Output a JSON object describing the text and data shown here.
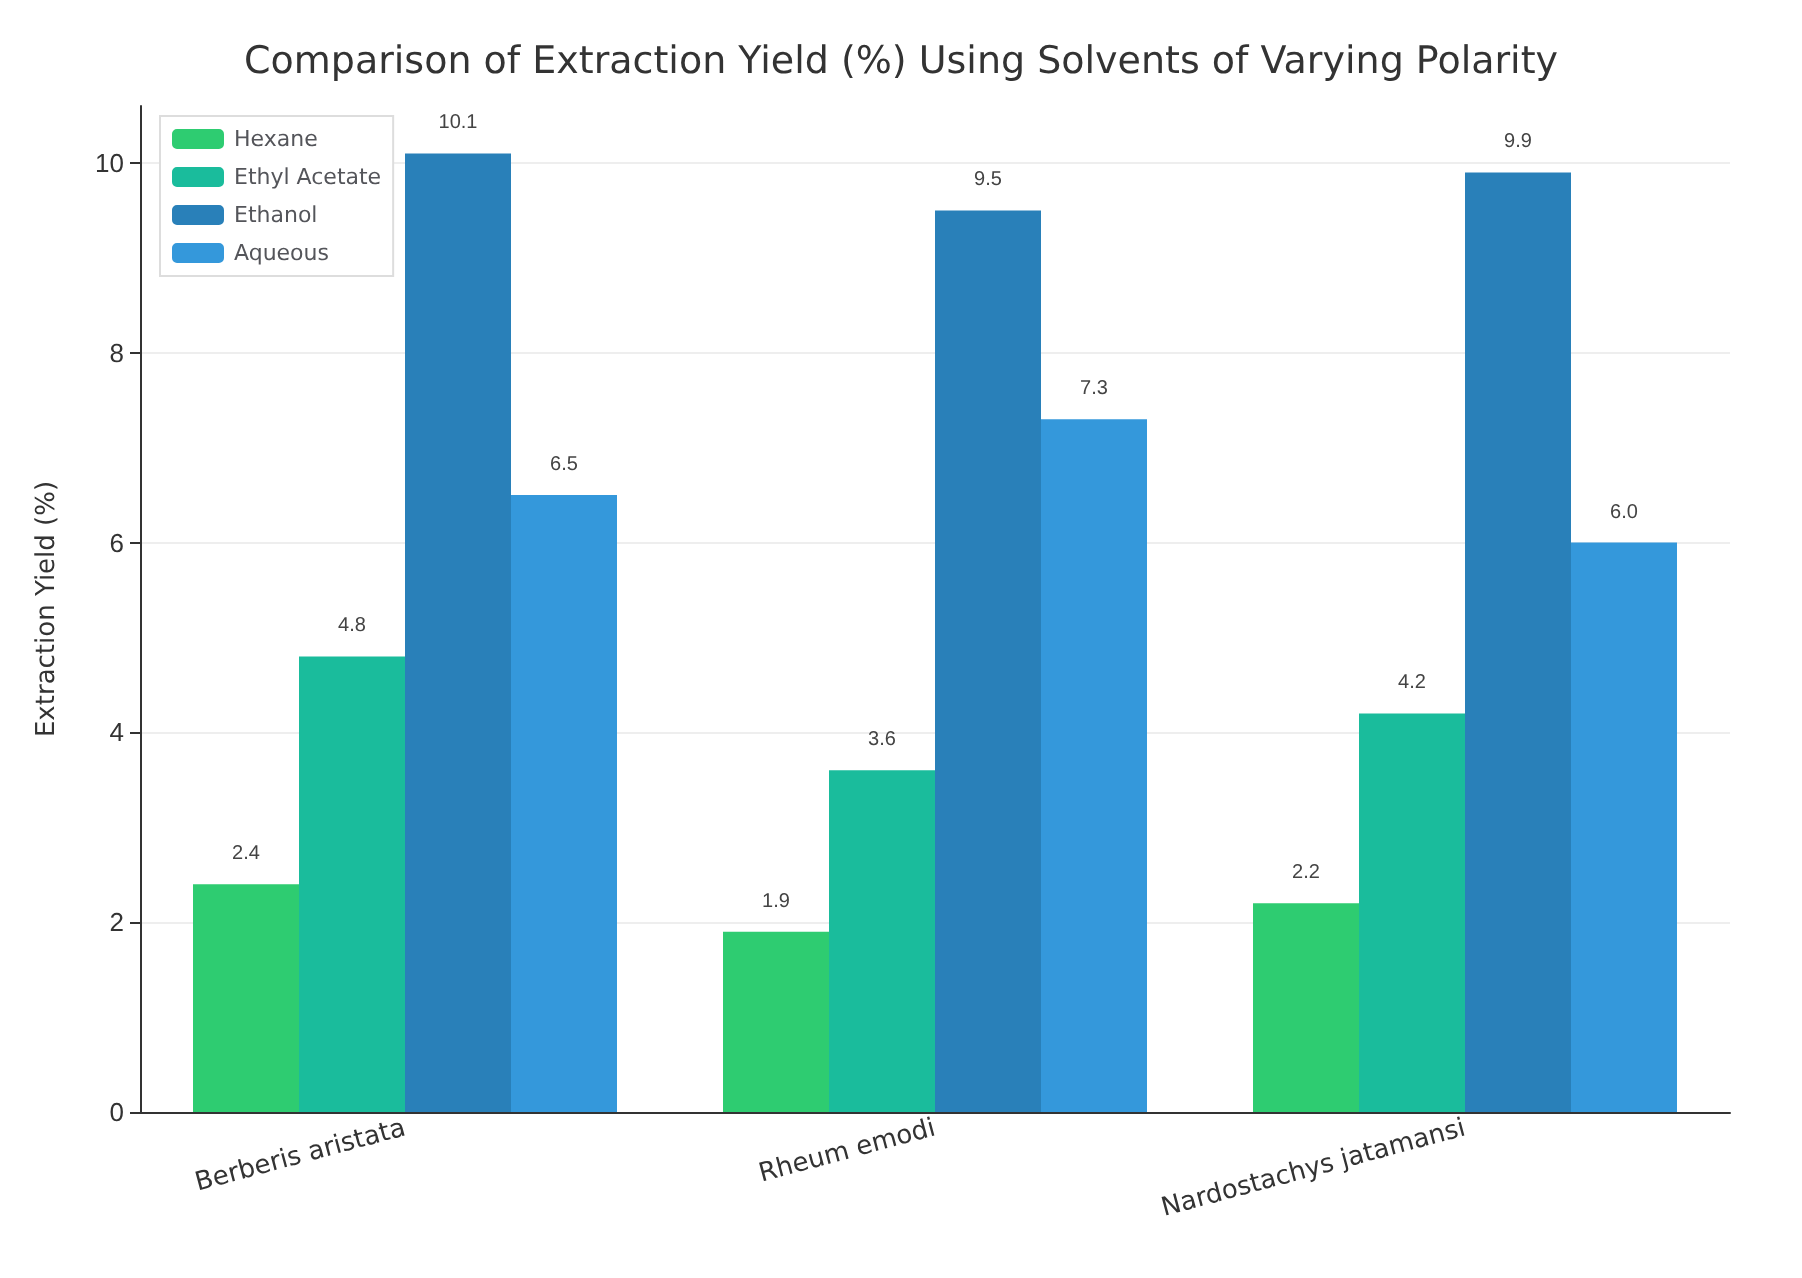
{
  "chart_data": {
    "type": "bar",
    "title": "Comparison of Extraction Yield (%) Using Solvents of Varying Polarity",
    "ylabel": "Extraction Yield (%)",
    "categories": [
      "Berberis aristata",
      "Rheum emodi",
      "Nardostachys jatamansi"
    ],
    "series": [
      {
        "name": "Hexane",
        "color": "#2ecc71",
        "values": [
          2.4,
          1.9,
          2.2
        ],
        "value_labels": [
          "2.4",
          "1.9",
          "2.2"
        ]
      },
      {
        "name": "Ethyl Acetate",
        "color": "#1abc9c",
        "values": [
          4.8,
          3.6,
          4.2
        ],
        "value_labels": [
          "4.8",
          "3.6",
          "4.2"
        ]
      },
      {
        "name": "Ethanol",
        "color": "#2980b9",
        "values": [
          10.1,
          9.5,
          9.9
        ],
        "value_labels": [
          "10.1",
          "9.5",
          "9.9"
        ]
      },
      {
        "name": "Aqueous",
        "color": "#3498db",
        "values": [
          6.5,
          7.3,
          6.0
        ],
        "value_labels": [
          "6.5",
          "7.3",
          "6.0"
        ]
      }
    ],
    "ylim": [
      0,
      10.6
    ],
    "yticks": [
      0,
      2,
      4,
      6,
      8,
      10
    ],
    "grid": "y",
    "legend": "top left"
  }
}
